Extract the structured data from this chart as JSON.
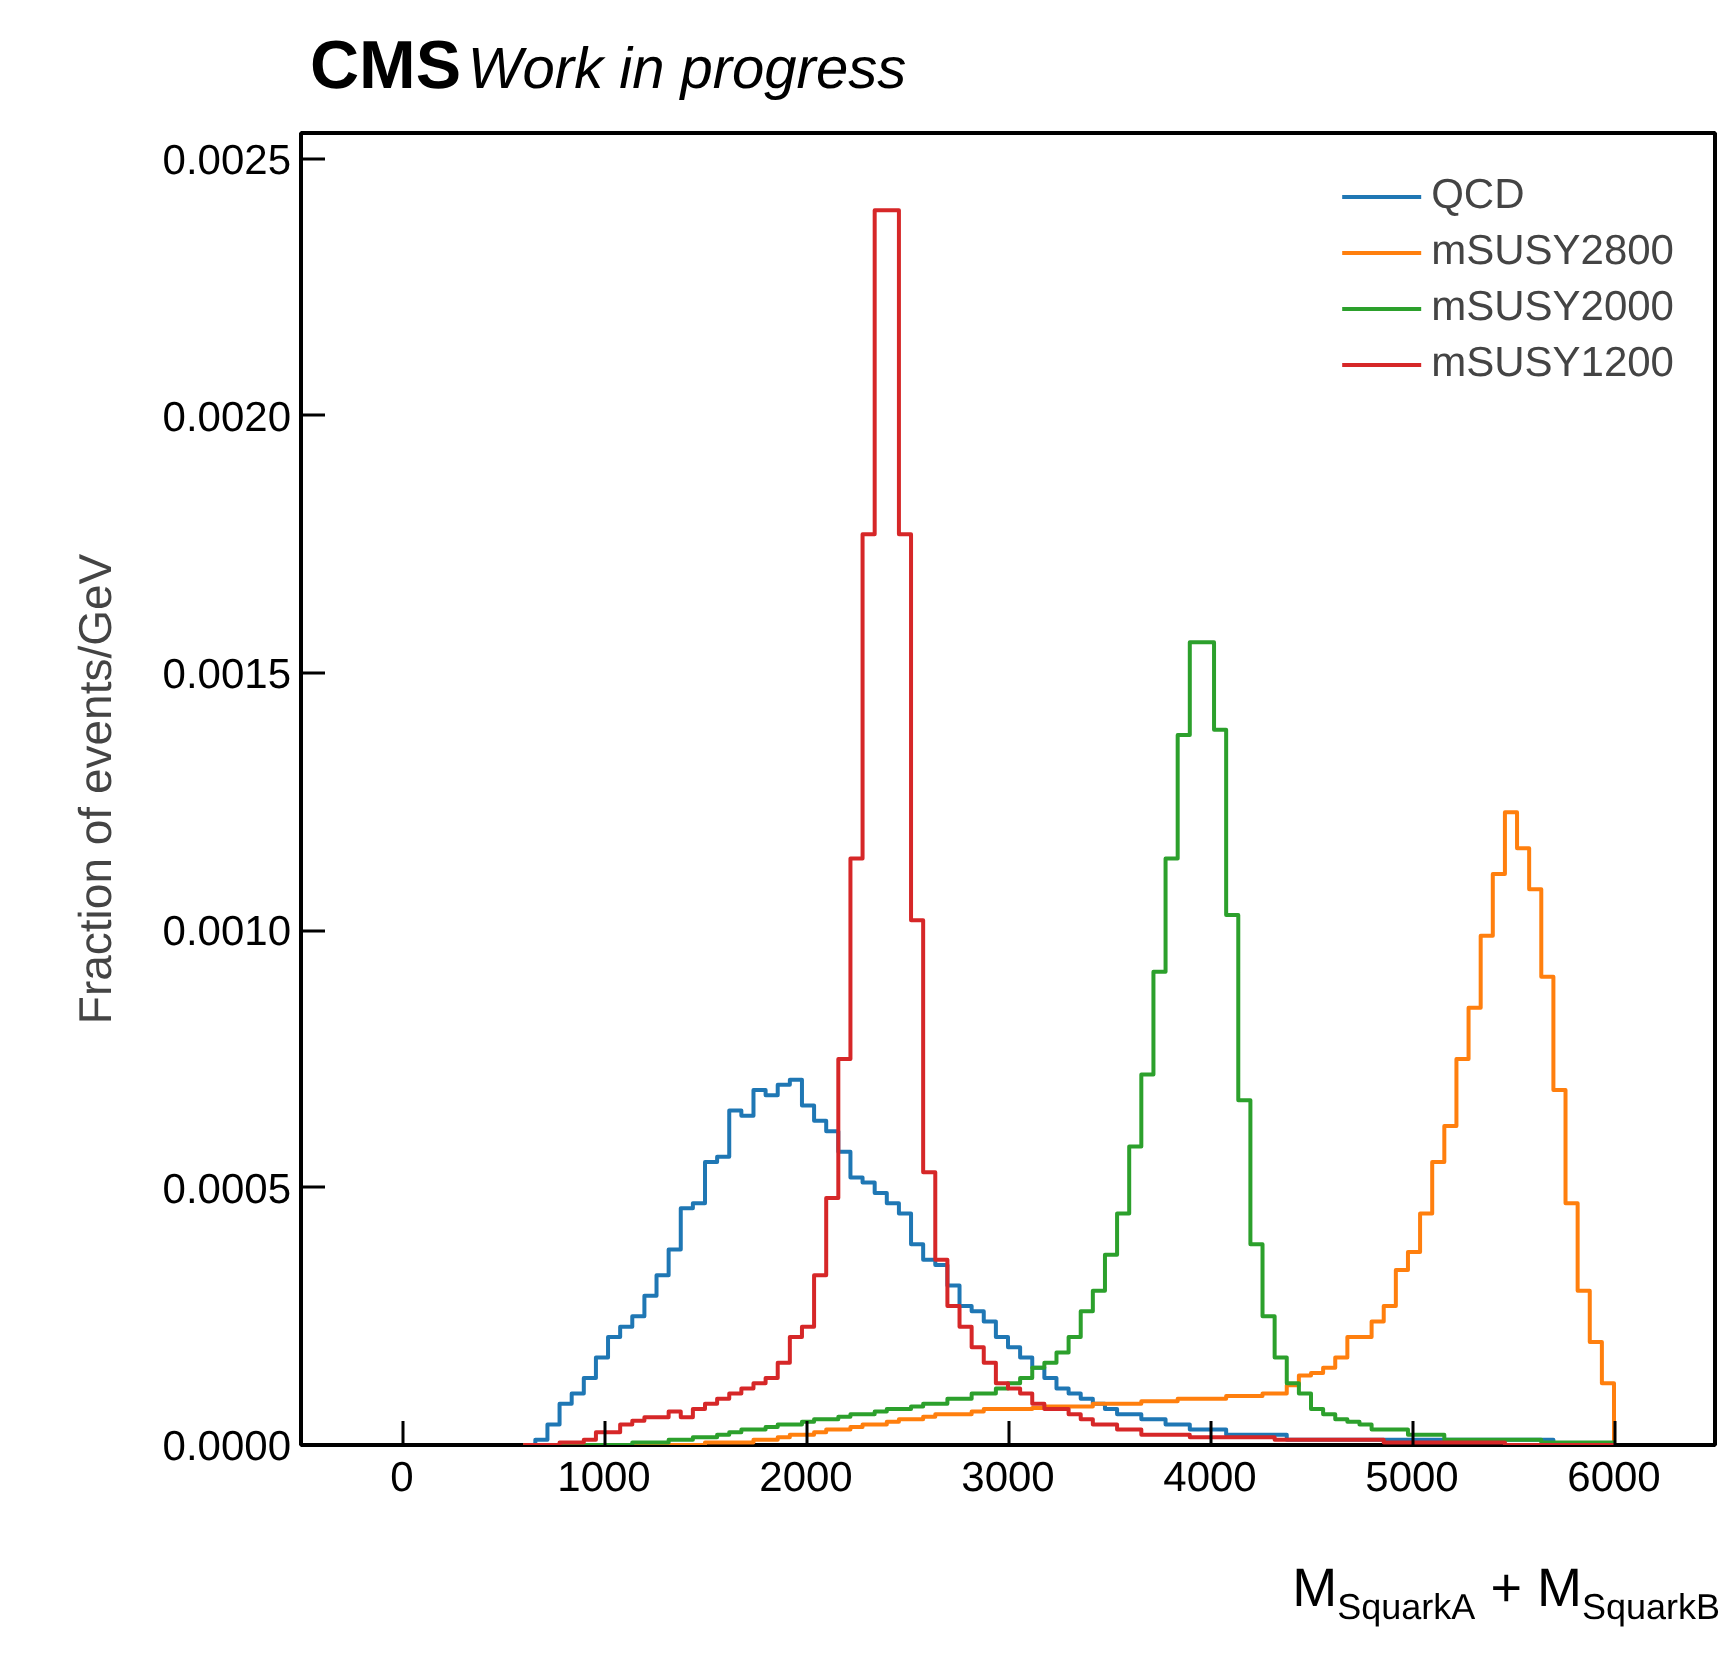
{
  "chart_data": {
    "type": "histogram",
    "title": "CMS",
    "subtitle": "Work in progress",
    "xlabel": "M$_{SquarkA}$ + M$_{SquarkB}$",
    "ylabel": "Fraction of events/GeV",
    "bins": [
      600,
      660,
      720,
      780,
      840,
      900,
      960,
      1020,
      1080,
      1140,
      1200,
      1260,
      1320,
      1380,
      1440,
      1500,
      1560,
      1620,
      1680,
      1740,
      1800,
      1860,
      1920,
      1980,
      2040,
      2100,
      2160,
      2220,
      2280,
      2340,
      2400,
      2460,
      2520,
      2580,
      2640,
      2700,
      2760,
      2820,
      2880,
      2940,
      3000,
      3060,
      3120,
      3180,
      3240,
      3300,
      3360,
      3420,
      3480,
      3540,
      3600,
      3660,
      3720,
      3780,
      3840,
      3900,
      3960,
      4020,
      4080,
      4140,
      4200,
      4260,
      4320,
      4380,
      4440,
      4500,
      4560,
      4620,
      4680,
      4740,
      4800,
      4860,
      4920,
      4980,
      5040,
      5100,
      5160,
      5220,
      5280,
      5340,
      5400,
      5460,
      5520,
      5580,
      5640,
      5700,
      5760,
      5820,
      5880,
      5940,
      6000
    ],
    "series": [
      {
        "name": "QCD",
        "color": "#1f77b4",
        "values": [
          0,
          1e-05,
          4e-05,
          8e-05,
          0.0001,
          0.00013,
          0.00017,
          0.00021,
          0.00023,
          0.00025,
          0.00029,
          0.00033,
          0.00038,
          0.00046,
          0.00047,
          0.00055,
          0.00056,
          0.00065,
          0.00064,
          0.00069,
          0.00068,
          0.0007,
          0.00071,
          0.00066,
          0.00063,
          0.00061,
          0.00057,
          0.00052,
          0.00051,
          0.00049,
          0.00047,
          0.00045,
          0.00039,
          0.00036,
          0.00035,
          0.00031,
          0.00027,
          0.00026,
          0.00024,
          0.00021,
          0.00019,
          0.00017,
          0.00015,
          0.00013,
          0.00011,
          0.0001,
          9e-05,
          8e-05,
          7e-05,
          6e-05,
          6e-05,
          5e-05,
          5e-05,
          4e-05,
          4e-05,
          3e-05,
          3e-05,
          3e-05,
          2e-05,
          2e-05,
          2e-05,
          2e-05,
          2e-05,
          1e-05,
          1e-05,
          1e-05,
          1e-05,
          1e-05,
          1e-05,
          1e-05,
          1e-05,
          1e-05,
          1e-05,
          1e-05,
          1e-05,
          1e-05,
          1e-05,
          1e-05,
          1e-05,
          1e-05,
          1e-05,
          1e-05,
          1e-05,
          1e-05,
          1e-05,
          0,
          0,
          0,
          0,
          0
        ]
      },
      {
        "name": "mSUSY2800",
        "color": "#ff7f0e",
        "values": [
          0,
          0,
          0,
          0,
          0,
          0,
          0,
          0,
          0,
          0,
          0,
          0,
          0,
          0,
          0,
          5e-06,
          5e-06,
          5e-06,
          5e-06,
          1e-05,
          1e-05,
          1.5e-05,
          2e-05,
          2e-05,
          2.5e-05,
          3e-05,
          3e-05,
          3.5e-05,
          4e-05,
          4e-05,
          4.5e-05,
          5e-05,
          5e-05,
          5.5e-05,
          6e-05,
          6e-05,
          6e-05,
          6.5e-05,
          7e-05,
          7e-05,
          7e-05,
          7e-05,
          7.2e-05,
          7.5e-05,
          7.5e-05,
          7.5e-05,
          7.5e-05,
          8e-05,
          8e-05,
          8e-05,
          8e-05,
          8.5e-05,
          8.5e-05,
          8.5e-05,
          9e-05,
          9e-05,
          9e-05,
          9e-05,
          9.5e-05,
          9.5e-05,
          9.5e-05,
          0.0001,
          0.0001,
          0.000116,
          0.000135,
          0.00014,
          0.00015,
          0.00017,
          0.00021,
          0.00021,
          0.00024,
          0.00027,
          0.00034,
          0.000375,
          0.00045,
          0.00055,
          0.00062,
          0.00075,
          0.00085,
          0.00099,
          0.00111,
          0.00123,
          0.00116,
          0.00108,
          0.00091,
          0.00069,
          0.00047,
          0.0003,
          0.0002,
          0.00012
        ]
      },
      {
        "name": "mSUSY2000",
        "color": "#2ca02c",
        "values": [
          0,
          0,
          0,
          0,
          0,
          0,
          0,
          0,
          0,
          5e-06,
          5e-06,
          5e-06,
          1e-05,
          1e-05,
          1.5e-05,
          1.5e-05,
          2e-05,
          2.5e-05,
          3e-05,
          3e-05,
          3.5e-05,
          4e-05,
          4e-05,
          4.5e-05,
          5e-05,
          5e-05,
          5.5e-05,
          6e-05,
          6e-05,
          6.5e-05,
          7e-05,
          7e-05,
          7.5e-05,
          8e-05,
          8e-05,
          9e-05,
          9e-05,
          0.0001,
          0.0001,
          0.00011,
          0.00012,
          0.00013,
          0.00015,
          0.00016,
          0.00018,
          0.00021,
          0.00026,
          0.0003,
          0.00037,
          0.00045,
          0.00058,
          0.00072,
          0.00092,
          0.00114,
          0.00138,
          0.00156,
          0.00156,
          0.00139,
          0.00103,
          0.00067,
          0.00039,
          0.00025,
          0.00017,
          0.00012,
          0.0001,
          7e-05,
          6e-05,
          5e-05,
          4.5e-05,
          4e-05,
          3e-05,
          3e-05,
          3e-05,
          2e-05,
          2e-05,
          2e-05,
          1e-05,
          1e-05,
          1e-05,
          1e-05,
          1e-05,
          1e-05,
          1e-05,
          1e-05,
          5e-06,
          5e-06,
          5e-06,
          5e-06,
          5e-06,
          5e-06
        ]
      },
      {
        "name": "mSUSY1200",
        "color": "#d62728",
        "values": [
          0,
          0,
          0,
          5e-06,
          5e-06,
          1e-05,
          2.5e-05,
          2.5e-05,
          4e-05,
          4.7e-05,
          5.4e-05,
          5.4e-05,
          6.5e-05,
          5.4e-05,
          7e-05,
          8e-05,
          9e-05,
          0.0001,
          0.00011,
          0.00012,
          0.00013,
          0.00016,
          0.00021,
          0.00023,
          0.00033,
          0.00048,
          0.00075,
          0.00114,
          0.00177,
          0.0024,
          0.0024,
          0.00177,
          0.00102,
          0.00053,
          0.00036,
          0.00027,
          0.00023,
          0.00019,
          0.00016,
          0.00012,
          0.00011,
          0.0001,
          8e-05,
          7e-05,
          7e-05,
          6e-05,
          5e-05,
          4e-05,
          4e-05,
          3e-05,
          3e-05,
          2e-05,
          2e-05,
          2e-05,
          2e-05,
          1.5e-05,
          1.5e-05,
          1.5e-05,
          1.5e-05,
          1.5e-05,
          1.5e-05,
          1.5e-05,
          1e-05,
          1e-05,
          1e-05,
          1e-05,
          1e-05,
          1e-05,
          1e-05,
          1e-05,
          1e-05,
          5e-06,
          5e-06,
          5e-06,
          5e-06,
          5e-06,
          5e-06,
          5e-06,
          5e-06,
          5e-06,
          5e-06,
          0,
          0,
          0,
          0,
          0,
          0,
          0,
          0,
          0
        ]
      }
    ],
    "xlim": [
      -500,
      6500
    ],
    "ylim": [
      0,
      0.00255
    ],
    "xticks": [
      0,
      1000,
      2000,
      3000,
      4000,
      5000,
      6000
    ],
    "yticks": [
      {
        "value": 0,
        "label": "0.0000"
      },
      {
        "value": 0.0005,
        "label": "0.0005"
      },
      {
        "value": 0.001,
        "label": "0.0010"
      },
      {
        "value": 0.0015,
        "label": "0.0015"
      },
      {
        "value": 0.002,
        "label": "0.0020"
      },
      {
        "value": 0.0025,
        "label": "0.0025"
      }
    ],
    "grid": false,
    "legend": "top right"
  }
}
